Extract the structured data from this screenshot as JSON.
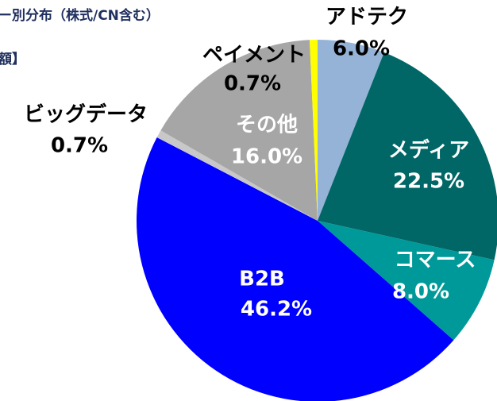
{
  "chart_data": {
    "type": "pie",
    "title": "ー別分布（株式/CN含む）",
    "subtitle": "額】",
    "categories": [
      "アドテク",
      "メディア",
      "コマース",
      "B2B",
      "ビッグデータ",
      "その他",
      "ペイメント"
    ],
    "values": [
      6.0,
      22.5,
      8.0,
      46.2,
      0.7,
      16.0,
      0.7
    ],
    "value_labels": [
      "6.0%",
      "22.5%",
      "8.0%",
      "46.2%",
      "0.7%",
      "16.0%",
      "0.7%"
    ],
    "colors": [
      "#95b3d7",
      "#006666",
      "#009999",
      "#0000ff",
      "#c8c8c8",
      "#a6a6a6",
      "#ffff00"
    ]
  }
}
